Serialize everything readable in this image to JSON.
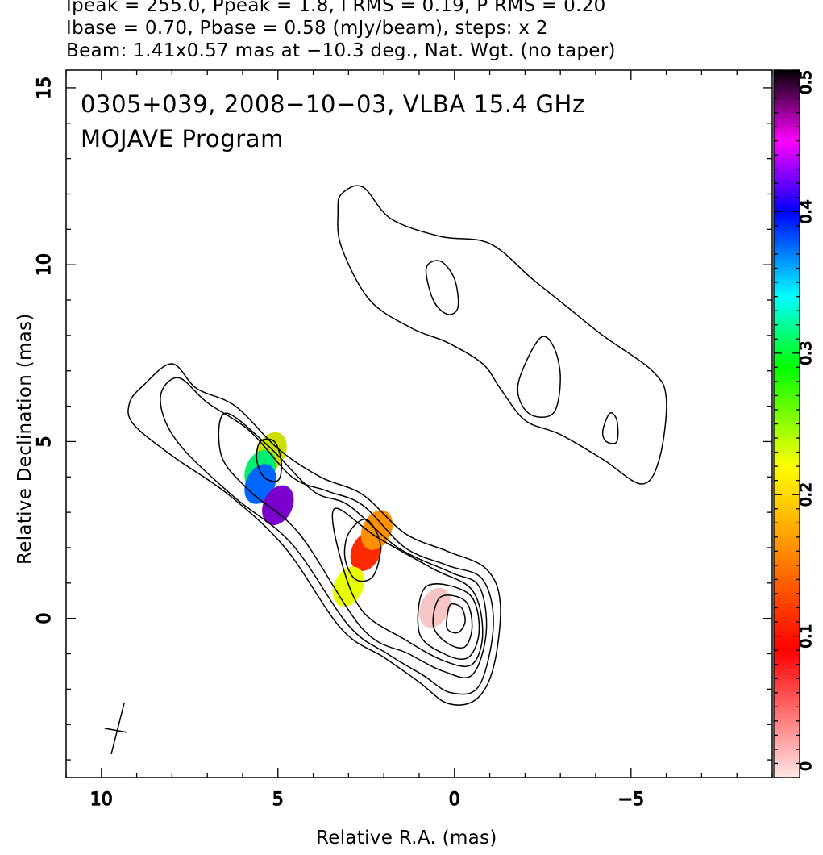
{
  "header": {
    "line1": "Ipeak = 255.0, Ppeak = 1.8, I RMS = 0.19, P RMS = 0.20",
    "line2": "Ibase = 0.70, Pbase = 0.58 (mJy/beam), steps: x 2",
    "line3": "Beam: 1.41x0.57 mas at −10.3 deg., Nat. Wgt. (no taper)"
  },
  "title": {
    "line1": "0305+039, 2008−10−03, VLBA 15.4 GHz",
    "line2": "MOJAVE Program"
  },
  "chart_data": {
    "type": "heatmap",
    "xlabel": "Relative R.A. (mas)",
    "ylabel": "Relative Declination (mas)",
    "xlim": [
      11,
      -9
    ],
    "ylim": [
      -4.5,
      15.5
    ],
    "x_ticks": [
      10,
      5,
      0,
      -5
    ],
    "x_tick_labels": [
      "10",
      "5",
      "0",
      "−5"
    ],
    "y_ticks": [
      0,
      5,
      10,
      15
    ],
    "y_tick_labels": [
      "0",
      "5",
      "10",
      "15"
    ],
    "colorbar": {
      "range": [
        0,
        0.5
      ],
      "ticks": [
        0,
        0.1,
        0.2,
        0.3,
        0.4,
        0.5
      ],
      "tick_labels": [
        "0",
        "0.1",
        "0.2",
        "0.3",
        "0.4",
        "0.5"
      ],
      "colors": [
        "#ffe6e6",
        "#ff0000",
        "#ff8c00",
        "#ffff00",
        "#00ff00",
        "#00ffff",
        "#0000ff",
        "#ff00ff",
        "#000000"
      ]
    },
    "contours": [
      {
        "name": "inner-jet-outer",
        "points": [
          [
            9.2,
            6.1
          ],
          [
            8.8,
            6.6
          ],
          [
            8.0,
            7.2
          ],
          [
            7.3,
            6.5
          ],
          [
            6.2,
            6.0
          ],
          [
            5.0,
            4.8
          ],
          [
            3.8,
            4.0
          ],
          [
            2.6,
            3.5
          ],
          [
            1.4,
            2.4
          ],
          [
            0.2,
            1.9
          ],
          [
            -0.9,
            1.4
          ],
          [
            -1.3,
            0.4
          ],
          [
            -1.1,
            -1.4
          ],
          [
            -0.6,
            -2.3
          ],
          [
            0.2,
            -2.4
          ],
          [
            1.0,
            -1.8
          ],
          [
            2.0,
            -1.1
          ],
          [
            3.2,
            -0.3
          ],
          [
            4.8,
            2.0
          ],
          [
            6.4,
            3.5
          ],
          [
            8.0,
            4.6
          ],
          [
            9.1,
            5.5
          ]
        ]
      },
      {
        "name": "inner-jet-2",
        "points": [
          [
            8.3,
            6.4
          ],
          [
            7.8,
            6.8
          ],
          [
            7.0,
            6.1
          ],
          [
            5.8,
            5.3
          ],
          [
            4.6,
            4.0
          ],
          [
            3.6,
            3.6
          ],
          [
            2.6,
            3.2
          ],
          [
            1.4,
            2.0
          ],
          [
            0.2,
            1.5
          ],
          [
            -0.8,
            1.1
          ],
          [
            -1.1,
            -0.2
          ],
          [
            -0.7,
            -1.9
          ],
          [
            0.1,
            -2.1
          ],
          [
            0.9,
            -1.6
          ],
          [
            1.9,
            -1.0
          ],
          [
            3.0,
            -0.2
          ],
          [
            4.6,
            2.1
          ],
          [
            6.2,
            3.4
          ],
          [
            7.6,
            4.7
          ],
          [
            8.2,
            5.6
          ]
        ]
      },
      {
        "name": "inner-jet-3",
        "points": [
          [
            6.5,
            5.8
          ],
          [
            5.3,
            4.9
          ],
          [
            4.0,
            3.6
          ],
          [
            3.0,
            3.2
          ],
          [
            1.6,
            2.0
          ],
          [
            0.1,
            1.3
          ],
          [
            -0.7,
            0.9
          ],
          [
            -0.9,
            -0.4
          ],
          [
            -0.5,
            -1.6
          ],
          [
            0.3,
            -1.5
          ],
          [
            1.3,
            -1.0
          ],
          [
            2.6,
            -0.3
          ],
          [
            4.4,
            2.4
          ],
          [
            5.8,
            3.6
          ],
          [
            6.6,
            4.6
          ]
        ]
      },
      {
        "name": "inner-jet-4",
        "points": [
          [
            3.4,
            3.1
          ],
          [
            2.2,
            2.3
          ],
          [
            0.6,
            1.4
          ],
          [
            -0.5,
            0.8
          ],
          [
            -0.8,
            -0.4
          ],
          [
            -0.5,
            -1.3
          ],
          [
            0.3,
            -1.2
          ],
          [
            1.4,
            -0.6
          ],
          [
            2.6,
            0.2
          ],
          [
            3.2,
            1.6
          ]
        ]
      },
      {
        "name": "core-1",
        "points": [
          [
            0.8,
            0.9
          ],
          [
            -0.4,
            0.7
          ],
          [
            -0.7,
            -0.3
          ],
          [
            -0.4,
            -1.1
          ],
          [
            0.3,
            -1.0
          ],
          [
            1.0,
            -0.4
          ]
        ]
      },
      {
        "name": "core-2",
        "points": [
          [
            0.4,
            0.6
          ],
          [
            -0.3,
            0.5
          ],
          [
            -0.5,
            -0.2
          ],
          [
            -0.3,
            -0.8
          ],
          [
            0.2,
            -0.7
          ],
          [
            0.6,
            -0.2
          ]
        ]
      },
      {
        "name": "core-3",
        "points": [
          [
            0.1,
            0.4
          ],
          [
            -0.2,
            0.3
          ],
          [
            -0.3,
            -0.1
          ],
          [
            -0.1,
            -0.4
          ],
          [
            0.2,
            -0.3
          ],
          [
            0.2,
            0.1
          ]
        ]
      },
      {
        "name": "knot-a",
        "points": [
          [
            3.0,
            2.4
          ],
          [
            2.5,
            2.8
          ],
          [
            2.1,
            2.1
          ],
          [
            2.3,
            1.2
          ],
          [
            2.8,
            1.1
          ],
          [
            3.1,
            1.7
          ]
        ]
      },
      {
        "name": "knot-b",
        "points": [
          [
            5.5,
            5.0
          ],
          [
            5.1,
            5.0
          ],
          [
            4.9,
            4.4
          ],
          [
            5.0,
            3.9
          ],
          [
            5.4,
            4.0
          ],
          [
            5.6,
            4.5
          ]
        ]
      },
      {
        "name": "outer-jet",
        "points": [
          [
            3.2,
            12.0
          ],
          [
            2.6,
            12.2
          ],
          [
            1.8,
            11.3
          ],
          [
            0.4,
            10.8
          ],
          [
            -1.0,
            10.6
          ],
          [
            -2.2,
            9.6
          ],
          [
            -3.2,
            8.8
          ],
          [
            -4.2,
            8.0
          ],
          [
            -5.6,
            7.0
          ],
          [
            -6.0,
            6.2
          ],
          [
            -5.8,
            4.5
          ],
          [
            -5.3,
            3.8
          ],
          [
            -4.2,
            4.5
          ],
          [
            -3.0,
            5.2
          ],
          [
            -2.0,
            5.6
          ],
          [
            -1.3,
            6.5
          ],
          [
            -0.8,
            7.2
          ],
          [
            0.2,
            7.8
          ],
          [
            1.2,
            8.2
          ],
          [
            2.4,
            9.0
          ],
          [
            3.2,
            10.5
          ],
          [
            3.3,
            11.5
          ]
        ]
      },
      {
        "name": "outer-knot-1",
        "points": [
          [
            0.8,
            9.9
          ],
          [
            0.4,
            10.1
          ],
          [
            0.0,
            9.6
          ],
          [
            -0.1,
            8.8
          ],
          [
            0.2,
            8.6
          ],
          [
            0.6,
            9.0
          ]
        ]
      },
      {
        "name": "outer-knot-2",
        "points": [
          [
            -2.4,
            7.9
          ],
          [
            -2.8,
            7.7
          ],
          [
            -3.0,
            6.8
          ],
          [
            -2.8,
            5.8
          ],
          [
            -2.1,
            5.8
          ],
          [
            -1.8,
            6.6
          ]
        ]
      },
      {
        "name": "outer-knot-3",
        "points": [
          [
            -4.4,
            5.8
          ],
          [
            -4.6,
            5.6
          ],
          [
            -4.6,
            5.0
          ],
          [
            -4.3,
            5.0
          ],
          [
            -4.2,
            5.3
          ]
        ]
      }
    ],
    "polarization_patches": [
      {
        "name": "core-faint",
        "ra": 0.55,
        "dec": 0.3,
        "color": "#f6c6c6"
      },
      {
        "name": "knot-a-center",
        "ra": 2.5,
        "dec": 1.9,
        "color": "#ff2a00"
      },
      {
        "name": "knot-a-edge",
        "ra": 2.2,
        "dec": 2.5,
        "color": "#ff9000"
      },
      {
        "name": "knot-a-tail",
        "ra": 3.0,
        "dec": 0.9,
        "color": "#e8ff00"
      },
      {
        "name": "knot-b-upper",
        "ra": 5.2,
        "dec": 4.7,
        "color": "#cce000"
      },
      {
        "name": "knot-b-mid",
        "ra": 5.5,
        "dec": 4.2,
        "color": "#00ee70"
      },
      {
        "name": "knot-b-lower",
        "ra": 5.5,
        "dec": 3.8,
        "color": "#0066ff"
      },
      {
        "name": "knot-b-dark",
        "ra": 5.0,
        "dec": 3.2,
        "color": "#7a00cc"
      }
    ]
  }
}
